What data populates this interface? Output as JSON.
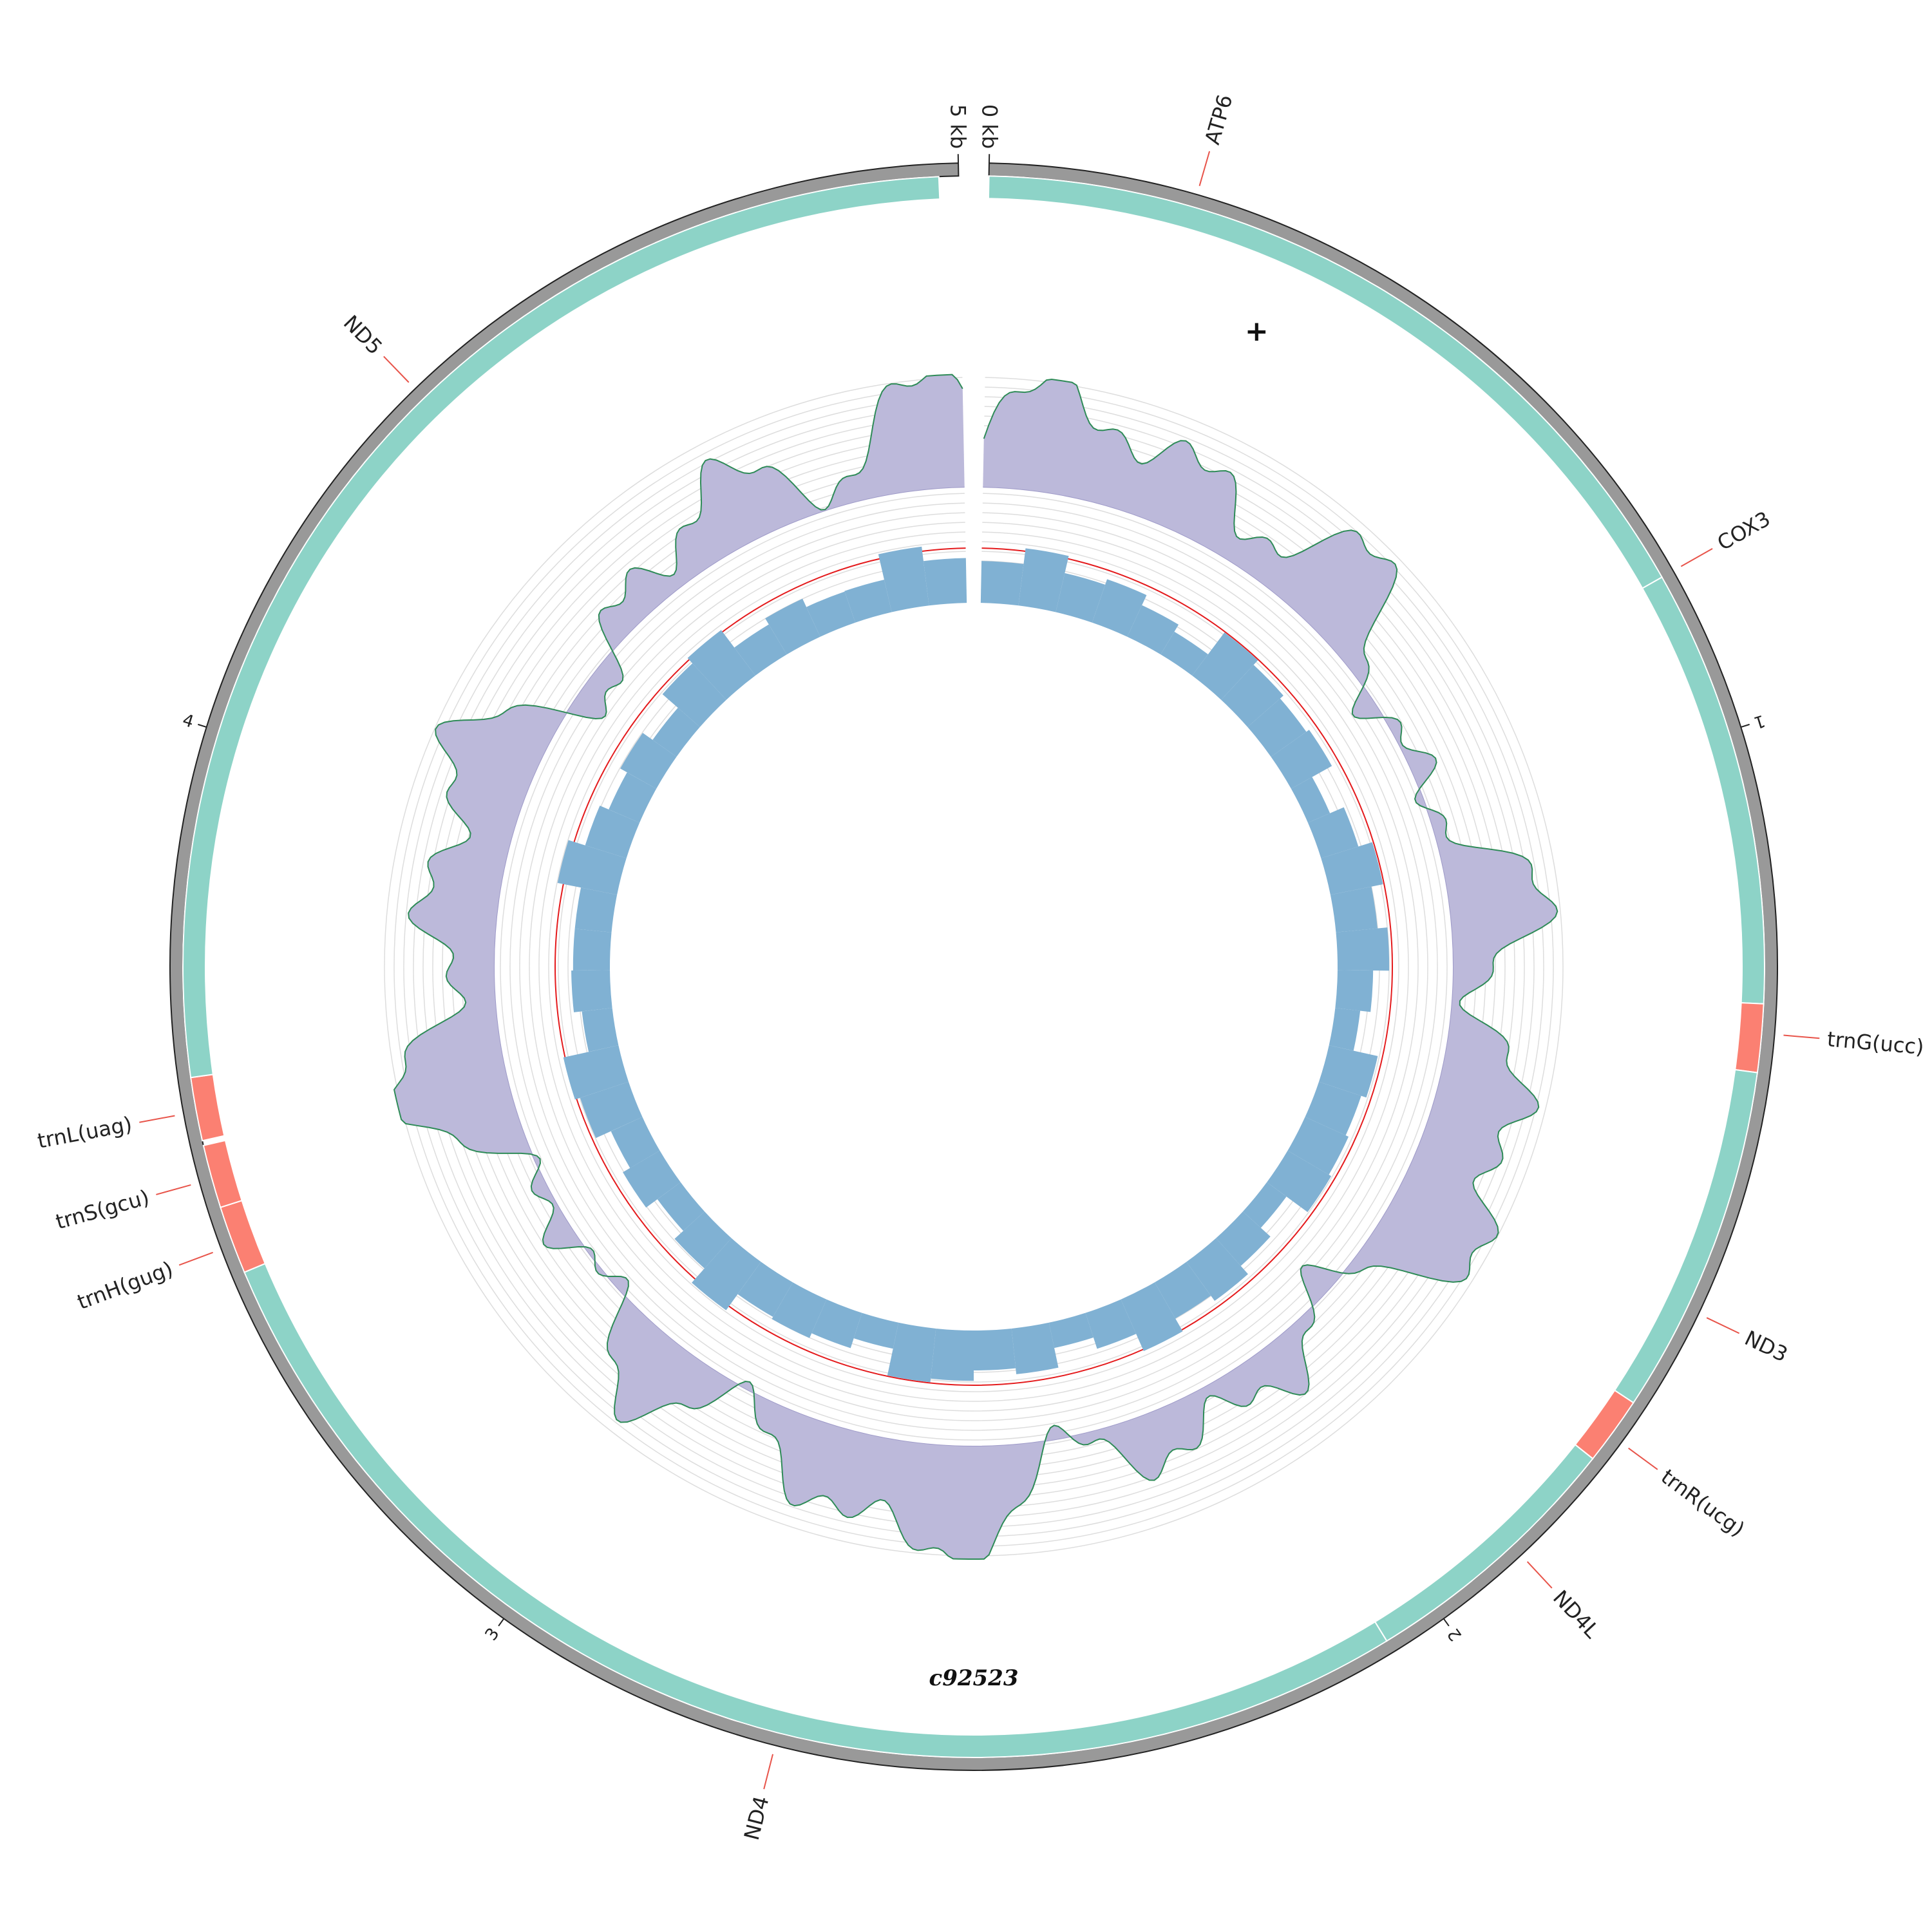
{
  "contig": {
    "name": "c92523",
    "strand_symbol": "+",
    "length_kb": 5.0
  },
  "scale": {
    "start_label": "0 kb",
    "end_label": "5 kb",
    "tick_labels": [
      "1",
      "2",
      "3",
      "4"
    ]
  },
  "colors": {
    "cds": "#8dd3c7",
    "trna": "#fb8072",
    "backbone": "#999999",
    "coverage_fill": "#bcb9da",
    "coverage_line": "#2e8b57",
    "gc_bar": "#80b1d3",
    "leader_line": "#e8544a",
    "reference_line": "#e41a1c",
    "grid": "#dddddd"
  },
  "features": [
    {
      "name": "ATP6",
      "type": "CDS",
      "start": 0.0,
      "end": 0.83
    },
    {
      "name": "COX3",
      "type": "CDS",
      "start": 0.83,
      "end": 1.28
    },
    {
      "name": "trnG(ucc)",
      "type": "tRNA",
      "start": 1.28,
      "end": 1.35
    },
    {
      "name": "ND3",
      "type": "CDS",
      "start": 1.35,
      "end": 1.71
    },
    {
      "name": "trnR(ucg)",
      "type": "tRNA",
      "start": 1.71,
      "end": 1.78
    },
    {
      "name": "ND4L",
      "type": "CDS",
      "start": 1.78,
      "end": 2.06
    },
    {
      "name": "ND4",
      "type": "CDS",
      "start": 2.06,
      "end": 3.44
    },
    {
      "name": "trnH(gug)",
      "type": "tRNA",
      "start": 3.44,
      "end": 3.51
    },
    {
      "name": "trnS(gcu)",
      "type": "tRNA",
      "start": 3.51,
      "end": 3.575
    },
    {
      "name": "trnL(uag)",
      "type": "tRNA",
      "start": 3.58,
      "end": 3.645
    },
    {
      "name": "ND5",
      "type": "CDS",
      "start": 3.645,
      "end": 4.98
    }
  ],
  "labels": [
    {
      "text": "ATP6",
      "position": 0.21
    },
    {
      "text": "COX3",
      "position": 0.83
    },
    {
      "text": "trnG(ucc)",
      "position": 1.31
    },
    {
      "text": "ND3",
      "position": 1.6
    },
    {
      "text": "trnR(ucg)",
      "position": 1.75
    },
    {
      "text": "ND4L",
      "position": 1.9
    },
    {
      "text": "ND4",
      "position": 2.7
    },
    {
      "text": "trnH(gug)",
      "position": 3.47
    },
    {
      "text": "trnS(gcu)",
      "position": 3.54
    },
    {
      "text": "trnL(uag)",
      "position": 3.61
    },
    {
      "text": "ND5",
      "position": 4.4
    }
  ]
}
